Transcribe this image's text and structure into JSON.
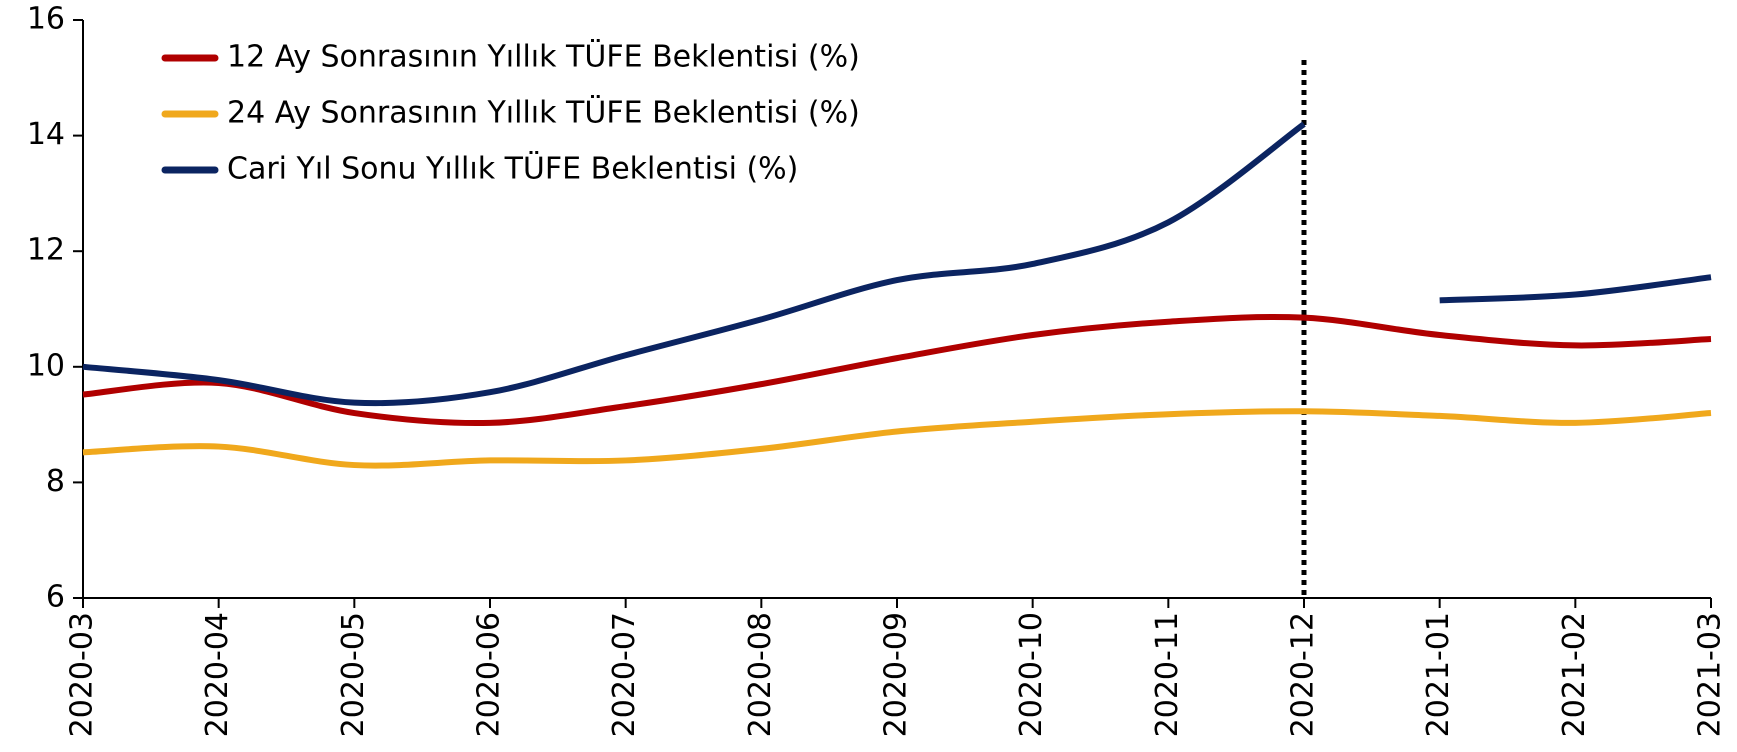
{
  "chart_data": {
    "type": "line",
    "categories": [
      "2020-03",
      "2020-04",
      "2020-05",
      "2020-06",
      "2020-07",
      "2020-08",
      "2020-09",
      "2020-10",
      "2020-11",
      "2020-12",
      "2021-01",
      "2021-02",
      "2021-03"
    ],
    "series": [
      {
        "name": "12 Ay Sonrasının Yıllık TÜFE Beklentisi (%)",
        "color": "#b00000",
        "values": [
          9.52,
          9.72,
          9.2,
          9.03,
          9.32,
          9.7,
          10.15,
          10.55,
          10.78,
          10.85,
          10.55,
          10.37,
          10.48
        ]
      },
      {
        "name": "24 Ay Sonrasının Yıllık TÜFE Beklentisi (%)",
        "color": "#f0a81c",
        "values": [
          8.52,
          8.62,
          8.3,
          8.38,
          8.38,
          8.58,
          8.88,
          9.05,
          9.18,
          9.23,
          9.15,
          9.03,
          9.2
        ]
      },
      {
        "name": "Cari Yıl Sonu Yıllık TÜFE Beklentisi (%)",
        "color": "#0b2461",
        "values": [
          10.0,
          9.77,
          9.38,
          9.56,
          10.2,
          10.82,
          11.5,
          11.78,
          12.5,
          14.2,
          11.15,
          11.25,
          11.55
        ],
        "gap_after": "2020-12"
      }
    ],
    "ylim": [
      6,
      16
    ],
    "yticks": [
      6,
      8,
      10,
      12,
      14,
      16
    ],
    "vline": "2020-12",
    "grid": false,
    "legend": "upper-left"
  }
}
